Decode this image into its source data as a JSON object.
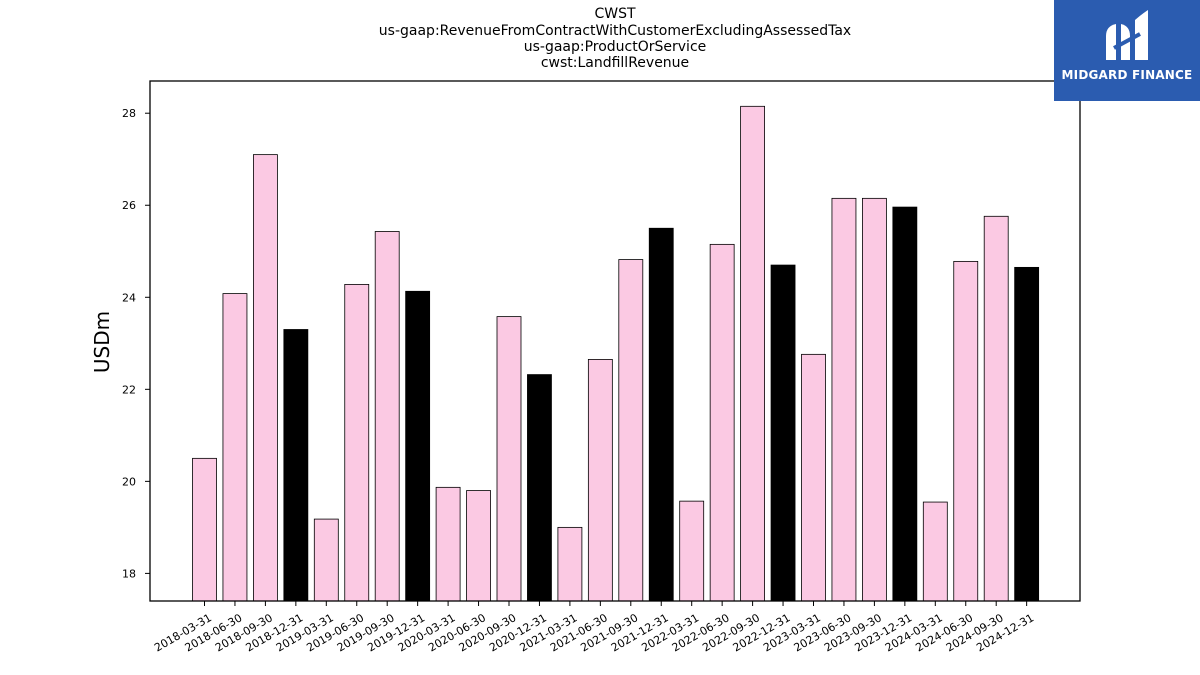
{
  "chart_data": {
    "type": "bar",
    "title_lines": [
      "CWST",
      "us-gaap:RevenueFromContractWithCustomerExcludingAssessedTax",
      "us-gaap:ProductOrService",
      "cwst:LandfillRevenue"
    ],
    "ylabel": "USDm",
    "xlabel": "",
    "ylim": [
      17.4,
      28.7
    ],
    "yticks": [
      18,
      20,
      22,
      24,
      26,
      28
    ],
    "categories": [
      "2018-03-31",
      "2018-06-30",
      "2018-09-30",
      "2018-12-31",
      "2019-03-31",
      "2019-06-30",
      "2019-09-30",
      "2019-12-31",
      "2020-03-31",
      "2020-06-30",
      "2020-09-30",
      "2020-12-31",
      "2021-03-31",
      "2021-06-30",
      "2021-09-30",
      "2021-12-31",
      "2022-03-31",
      "2022-06-30",
      "2022-09-30",
      "2022-12-31",
      "2023-03-31",
      "2023-06-30",
      "2023-09-30",
      "2023-12-31",
      "2024-03-31",
      "2024-06-30",
      "2024-09-30",
      "2024-12-31"
    ],
    "values": [
      20.5,
      24.08,
      27.1,
      23.3,
      19.18,
      24.28,
      25.43,
      24.13,
      19.87,
      19.8,
      23.58,
      22.32,
      19.0,
      22.65,
      24.82,
      25.5,
      19.57,
      25.15,
      28.15,
      24.7,
      22.76,
      26.15,
      26.15,
      25.96,
      19.55,
      24.78,
      25.76,
      24.65
    ],
    "bar_colors": {
      "quarter": "#fbc9e3",
      "year_end": "#000000"
    },
    "grid": false,
    "legend": "none"
  },
  "logo": {
    "text": "MIDGARD FINANCE",
    "bg": "#2b5cb0"
  }
}
